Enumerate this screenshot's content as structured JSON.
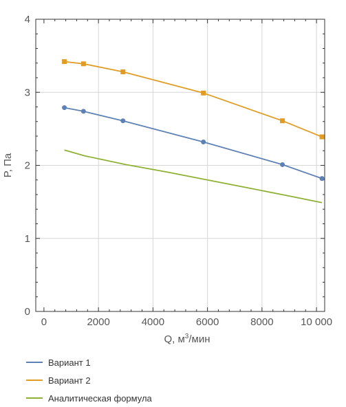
{
  "chart_data": {
    "type": "line",
    "xlabel_main": "Q, м",
    "xlabel_sup": "3",
    "xlabel_tail": "/мин",
    "ylabel": "P, Па",
    "xlim": [
      -300,
      10300
    ],
    "ylim": [
      0,
      4
    ],
    "x_ticks": [
      0,
      2000,
      4000,
      6000,
      8000,
      10000
    ],
    "x_tick_labels": [
      "0",
      "2000",
      "4000",
      "6000",
      "8000",
      "10 000"
    ],
    "y_ticks": [
      0,
      1,
      2,
      3,
      4
    ],
    "y_tick_labels": [
      "0",
      "1",
      "2",
      "3",
      "4"
    ],
    "grid": true,
    "legend_position": "bottom-left",
    "series": [
      {
        "name": "Вариант 1",
        "color": "#5E81B5",
        "marker": "circle",
        "x": [
          750,
          1450,
          2900,
          5850,
          8750,
          10200
        ],
        "y": [
          2.79,
          2.74,
          2.61,
          2.32,
          2.01,
          1.82
        ]
      },
      {
        "name": "Вариант 2",
        "color": "#E19C24",
        "marker": "square",
        "x": [
          750,
          1450,
          2900,
          5850,
          8750,
          10200
        ],
        "y": [
          3.42,
          3.39,
          3.28,
          2.99,
          2.61,
          2.39
        ]
      },
      {
        "name": "Аналитическая формула",
        "color": "#8FB032",
        "marker": "none",
        "x": [
          750,
          1500,
          3000,
          4500,
          6000,
          7500,
          9000,
          10200
        ],
        "y": [
          2.21,
          2.13,
          2.01,
          1.91,
          1.8,
          1.69,
          1.58,
          1.49
        ]
      }
    ]
  }
}
